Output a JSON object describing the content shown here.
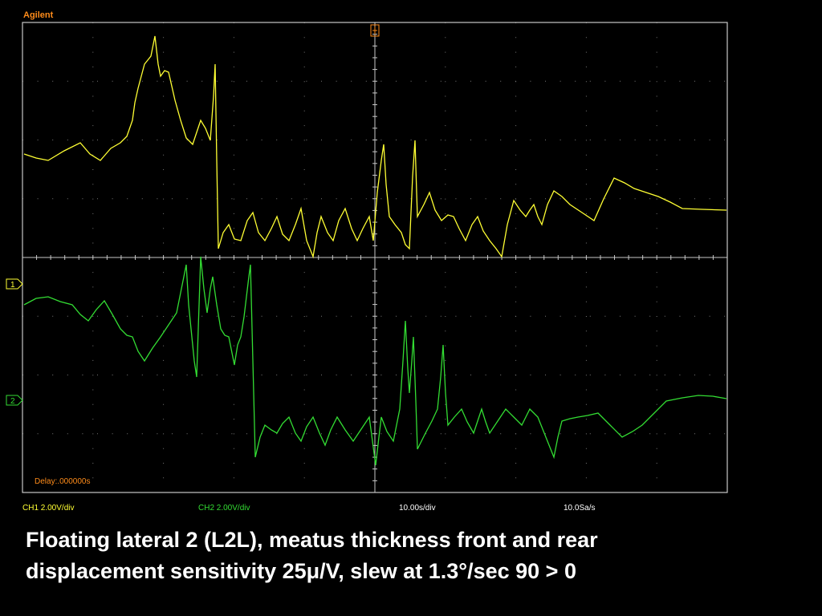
{
  "scope": {
    "brand": "Agilent",
    "delay": "Delay:.000000s",
    "channel_markers": [
      "1",
      "2"
    ],
    "status": {
      "ch1": "CH1 2.00V/div",
      "ch2": "CH2 2.00V/div",
      "timebase": "10.00s/div",
      "sample_rate": "10.0Sa/s"
    }
  },
  "caption": {
    "line1": "Floating lateral 2 (L2L), meatus thickness front and rear",
    "line2": "displacement sensitivity 25μ/V, slew at 1.3°/sec 90 > 0"
  }
}
